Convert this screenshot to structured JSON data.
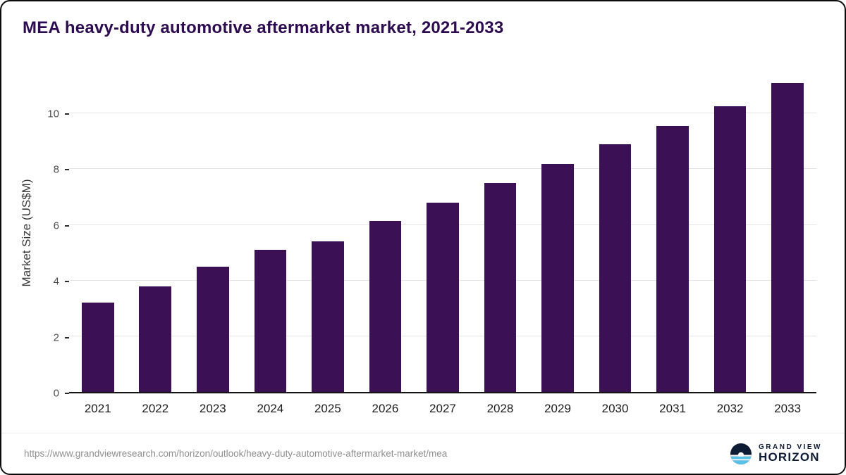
{
  "header": {
    "title": "MEA heavy-duty automotive aftermarket market, 2021-2033"
  },
  "chart_data": {
    "type": "bar",
    "title": "MEA heavy-duty automotive aftermarket market, 2021-2033",
    "categories": [
      "2021",
      "2022",
      "2023",
      "2024",
      "2025",
      "2026",
      "2027",
      "2028",
      "2029",
      "2030",
      "2031",
      "2032",
      "2033"
    ],
    "values": [
      3.2,
      3.8,
      4.5,
      5.1,
      5.4,
      6.15,
      6.8,
      7.5,
      8.2,
      8.9,
      9.55,
      10.25,
      11.1
    ],
    "xlabel": "",
    "ylabel": "Market Size (US$M)",
    "ylim": [
      0,
      11.5
    ],
    "yticks": [
      0,
      2,
      4,
      6,
      8,
      10
    ],
    "grid": "horizontal",
    "legend": "none",
    "bar_color": "#3b1054"
  },
  "colors": {
    "bar": "#3b1054",
    "title": "#2d0b50",
    "accent_blue": "#57c1e8",
    "logo_navy": "#0e1b35"
  },
  "footer": {
    "source_url": "https://www.grandviewresearch.com/horizon/outlook/heavy-duty-automotive-aftermarket-market/mea",
    "logo": {
      "line1": "GRAND VIEW",
      "line2": "HORIZON"
    }
  }
}
